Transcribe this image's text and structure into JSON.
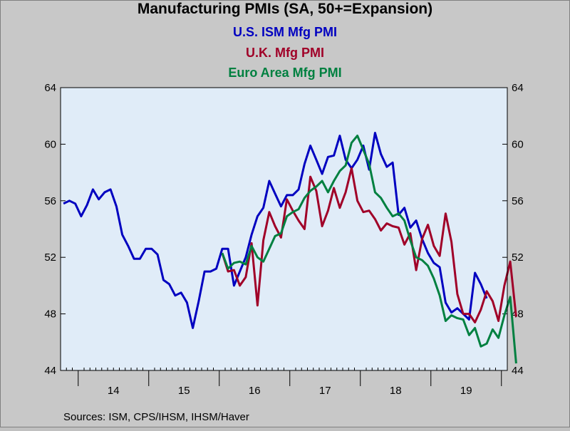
{
  "chart_data": {
    "type": "line",
    "title": "Manufacturing PMIs (SA, 50+=Expansion)",
    "ylim": [
      44,
      64
    ],
    "yticks": [
      44,
      48,
      52,
      56,
      60,
      64
    ],
    "x_start": "2013-10",
    "x_end": "2020-01",
    "year_labels": [
      "14",
      "15",
      "16",
      "17",
      "18",
      "19"
    ],
    "grid": false,
    "colors": {
      "background": "#e0ecf8",
      "frame": "#c8c8c8"
    },
    "series": [
      {
        "name": "U.S. ISM Mfg PMI",
        "color": "#0000c0",
        "start": "2013-10",
        "values": [
          55.8,
          56.0,
          55.8,
          54.9,
          55.7,
          56.8,
          56.1,
          56.6,
          56.8,
          55.6,
          53.6,
          52.8,
          51.9,
          51.9,
          52.6,
          52.6,
          52.2,
          50.4,
          50.1,
          49.3,
          49.5,
          48.8,
          47.0,
          48.9,
          51.0,
          51.0,
          51.2,
          52.6,
          52.6,
          50.0,
          51.0,
          52.0,
          53.6,
          54.9,
          55.5,
          57.4,
          56.5,
          55.6,
          56.4,
          56.4,
          56.8,
          58.6,
          59.9,
          58.9,
          57.9,
          59.1,
          59.2,
          60.6,
          58.9,
          58.3,
          58.9,
          59.9,
          58.2,
          60.8,
          59.3,
          58.4,
          58.7,
          55.0,
          55.5,
          54.1,
          54.6,
          53.3,
          52.3,
          51.6,
          51.3,
          48.8,
          48.1,
          48.4,
          48.0,
          47.6,
          50.9,
          50.1,
          49.1
        ]
      },
      {
        "name": "U.K. Mfg PMI",
        "color": "#a00028",
        "start": "2016-01",
        "values": [
          52.3,
          51.0,
          51.1,
          50.0,
          50.6,
          53.0,
          48.6,
          53.2,
          55.2,
          54.2,
          53.4,
          56.1,
          55.3,
          54.6,
          54.0,
          57.7,
          56.7,
          54.2,
          55.3,
          56.9,
          55.5,
          56.6,
          58.3,
          56.0,
          55.2,
          55.3,
          54.7,
          53.9,
          54.4,
          54.2,
          54.1,
          52.9,
          53.7,
          51.1,
          53.3,
          54.3,
          52.8,
          52.1,
          55.1,
          53.1,
          49.4,
          48.0,
          48.0,
          47.4,
          48.3,
          49.6,
          48.9,
          47.5,
          50.0,
          51.7,
          47.8
        ]
      },
      {
        "name": "Euro Area Mfg PMI",
        "color": "#008040",
        "start": "2016-01",
        "values": [
          52.3,
          51.2,
          51.6,
          51.7,
          51.5,
          52.8,
          52.0,
          51.7,
          52.6,
          53.5,
          53.7,
          54.9,
          55.2,
          55.4,
          56.2,
          56.7,
          57.0,
          57.4,
          56.6,
          57.4,
          58.1,
          58.5,
          60.1,
          60.6,
          59.6,
          58.6,
          56.6,
          56.2,
          55.5,
          54.9,
          55.1,
          54.6,
          53.2,
          52.0,
          51.8,
          51.4,
          50.5,
          49.3,
          47.5,
          47.9,
          47.7,
          47.6,
          46.5,
          47.0,
          45.7,
          45.9,
          46.9,
          46.3,
          47.9,
          49.2,
          44.5
        ]
      }
    ]
  },
  "footer": {
    "source": "Sources:  ISM, CPS/IHSM, IHSM/Haver"
  }
}
